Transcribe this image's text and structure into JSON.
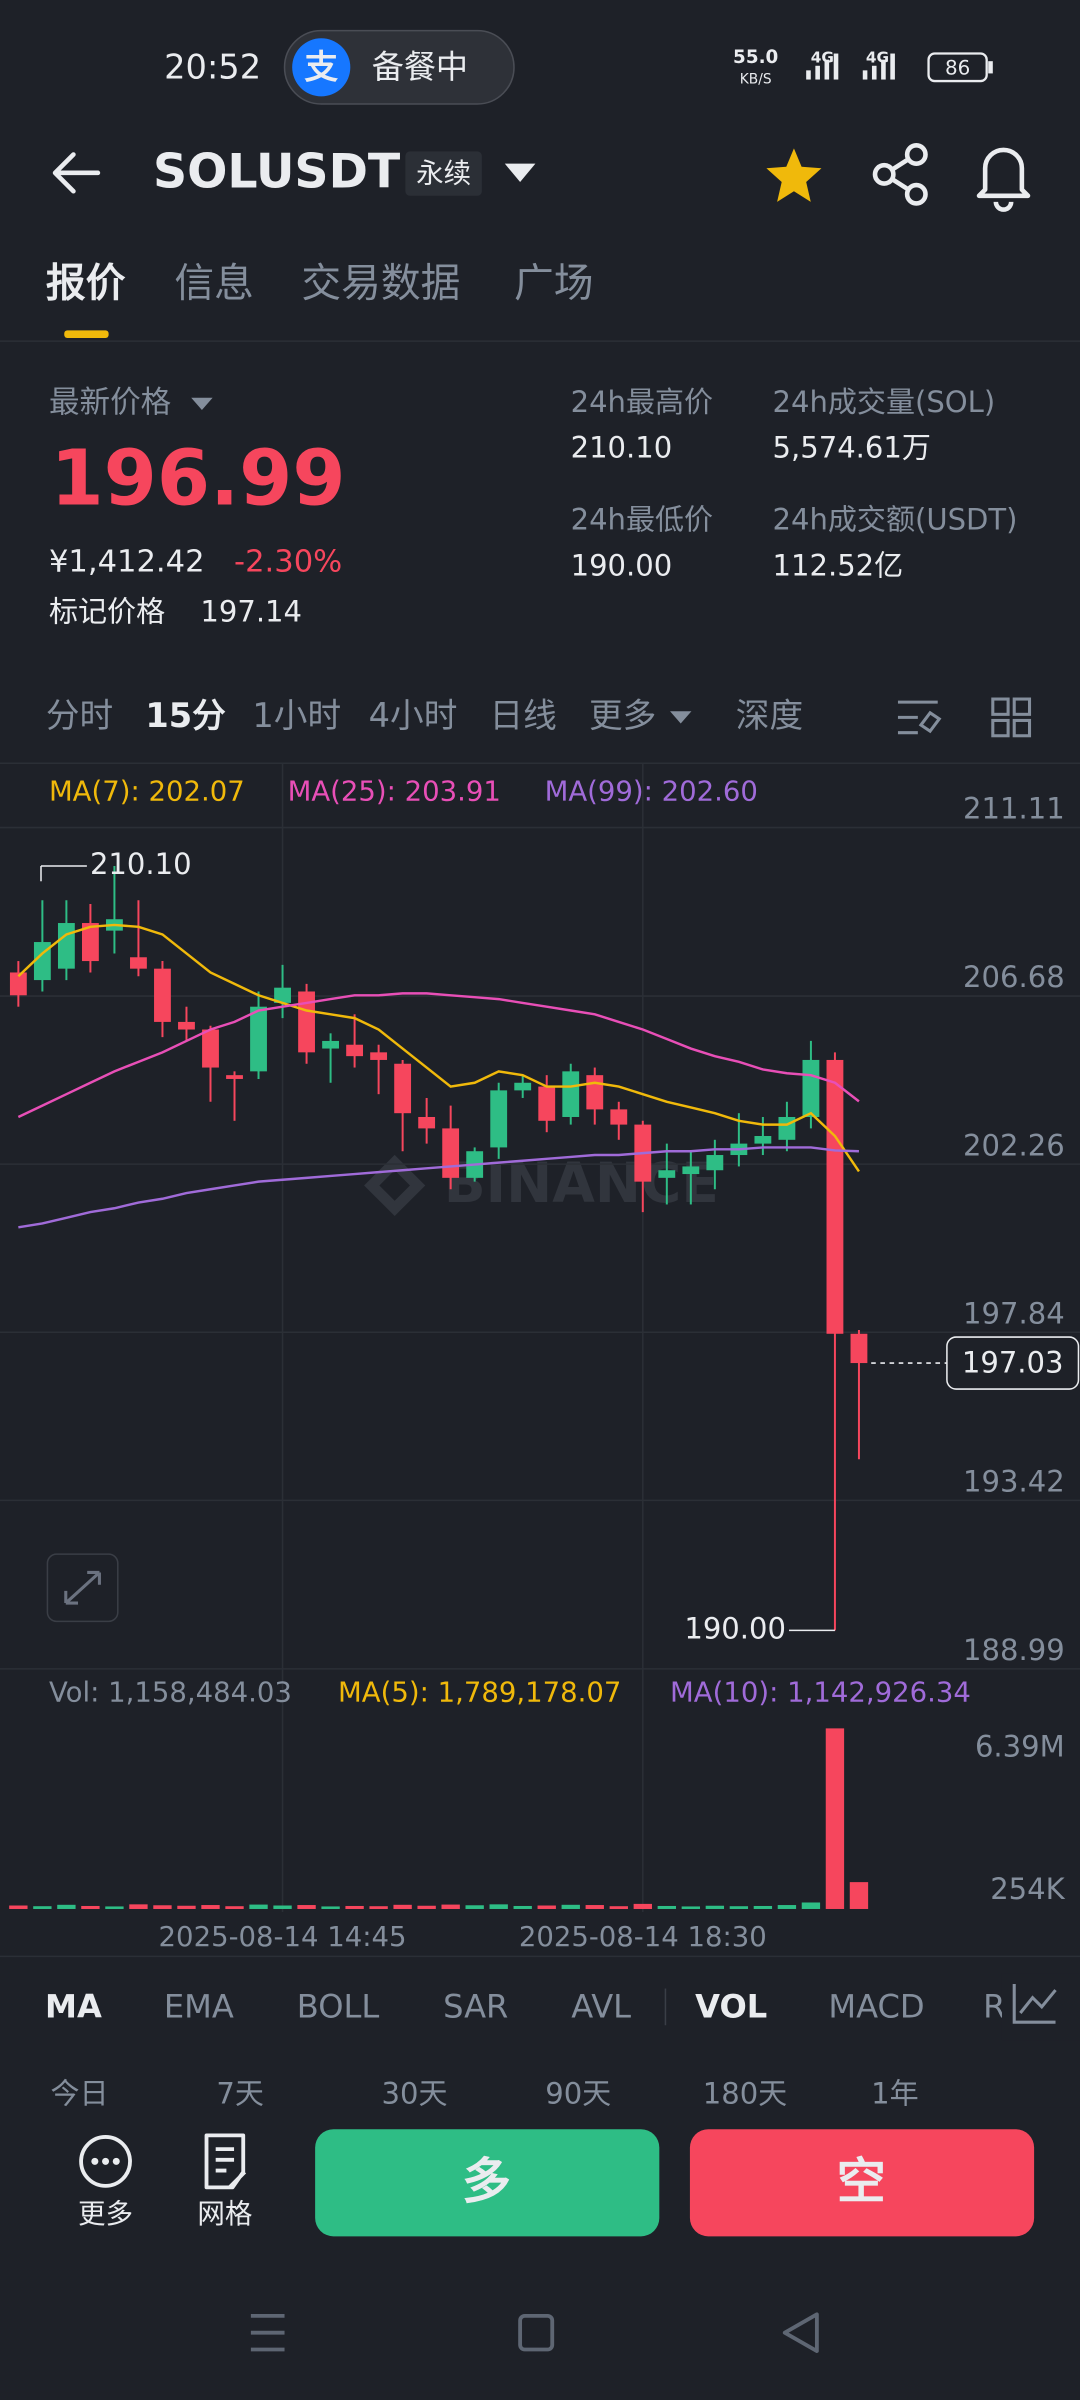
{
  "status_bar": {
    "time": "20:52",
    "app_icon": "支",
    "pill": "备餐中",
    "net_speed": "55.0",
    "net_unit": "KB/S",
    "net1": "4G",
    "net2": "4G",
    "battery": "86"
  },
  "header": {
    "symbol": "SOLUSDT",
    "tag": "永续"
  },
  "tabs": [
    "报价",
    "信息",
    "交易数据",
    "广场"
  ],
  "ticker": {
    "last_label": "最新价格",
    "last_price": "196.99",
    "cny": "¥1,412.42",
    "change": "-2.30%",
    "mark_label": "标记价格",
    "mark_price": "197.14",
    "stats": [
      {
        "label": "24h最高价",
        "value": "210.10"
      },
      {
        "label": "24h成交量(SOL)",
        "value": "5,574.61万"
      },
      {
        "label": "24h最低价",
        "value": "190.00"
      },
      {
        "label": "24h成交额(USDT)",
        "value": "112.52亿"
      }
    ]
  },
  "intervals": [
    "分时",
    "15分",
    "1小时",
    "4小时",
    "日线",
    "更多",
    "深度"
  ],
  "watermark": "BINANCE",
  "chart_data": [
    {
      "type": "candlestick",
      "up_color": "#2ebd85",
      "down_color": "#f6465d",
      "categories": [
        null,
        null,
        null,
        null,
        null,
        null,
        null,
        null,
        null,
        null,
        null,
        "2025-08-14 14:45",
        null,
        null,
        null,
        null,
        null,
        null,
        null,
        null,
        null,
        null,
        null,
        null,
        null,
        null,
        "2025-08-14 18:30",
        null,
        null,
        null,
        null,
        null,
        null,
        null,
        null,
        null
      ],
      "open": [
        207.3,
        207.1,
        207.4,
        208.6,
        208.4,
        207.7,
        207.4,
        206.0,
        205.8,
        204.6,
        204.7,
        206.5,
        206.8,
        205.3,
        205.4,
        205.2,
        204.9,
        203.5,
        203.2,
        201.9,
        202.7,
        204.2,
        204.3,
        203.5,
        204.6,
        203.7,
        203.3,
        201.9,
        202.0,
        202.1,
        202.5,
        202.8,
        202.9,
        203.5,
        205.0,
        197.8
      ],
      "high": [
        207.6,
        209.2,
        209.2,
        209.1,
        210.1,
        209.2,
        207.6,
        206.4,
        205.9,
        204.7,
        206.8,
        207.5,
        207.0,
        205.7,
        206.2,
        205.4,
        205.0,
        204.0,
        203.8,
        202.7,
        204.4,
        204.6,
        204.6,
        204.9,
        204.8,
        203.9,
        203.4,
        202.8,
        202.6,
        202.9,
        203.6,
        203.5,
        203.9,
        205.5,
        205.2,
        197.9
      ],
      "low": [
        206.4,
        206.8,
        207.1,
        207.3,
        207.8,
        207.2,
        205.6,
        205.5,
        203.9,
        203.4,
        204.5,
        206.1,
        204.9,
        204.4,
        204.8,
        204.1,
        202.6,
        202.8,
        201.6,
        201.8,
        202.4,
        204.0,
        203.1,
        203.3,
        203.3,
        202.9,
        201.0,
        201.2,
        201.2,
        201.6,
        202.2,
        202.5,
        202.6,
        203.2,
        190.0,
        194.5
      ],
      "close": [
        206.7,
        208.1,
        208.6,
        207.6,
        208.7,
        207.4,
        206.0,
        205.8,
        204.8,
        204.5,
        206.4,
        206.9,
        205.2,
        205.5,
        205.1,
        205.0,
        203.6,
        203.2,
        201.9,
        202.6,
        204.2,
        204.4,
        203.4,
        204.7,
        203.7,
        203.3,
        201.8,
        202.1,
        202.2,
        202.5,
        202.8,
        203.0,
        203.5,
        205.0,
        197.8,
        197.03
      ],
      "series": [
        {
          "name": "MA(7): 202.07",
          "color": "#f0b90b",
          "values": [
            207.2,
            207.8,
            208.3,
            208.5,
            208.55,
            208.5,
            208.3,
            207.8,
            207.3,
            207.0,
            206.7,
            206.5,
            206.3,
            206.2,
            206.1,
            205.8,
            205.3,
            204.8,
            204.3,
            204.4,
            204.7,
            204.6,
            204.3,
            204.3,
            204.4,
            204.3,
            204.1,
            203.9,
            203.75,
            203.6,
            203.4,
            203.3,
            203.3,
            203.6,
            203.0,
            202.07
          ]
        },
        {
          "name": "MA(25): 203.91",
          "color": "#e84fb7",
          "values": [
            203.5,
            203.8,
            204.1,
            204.4,
            204.7,
            204.95,
            205.2,
            205.5,
            205.8,
            206.0,
            206.3,
            206.4,
            206.5,
            206.6,
            206.7,
            206.7,
            206.75,
            206.75,
            206.7,
            206.65,
            206.6,
            206.5,
            206.4,
            206.3,
            206.2,
            206.0,
            205.8,
            205.55,
            205.3,
            205.1,
            204.95,
            204.75,
            204.65,
            204.6,
            204.4,
            203.91
          ]
        },
        {
          "name": "MA(99): 202.60",
          "color": "#a06bd9",
          "values": [
            200.6,
            200.7,
            200.85,
            201.0,
            201.1,
            201.25,
            201.35,
            201.5,
            201.6,
            201.7,
            201.8,
            201.85,
            201.9,
            201.95,
            202.0,
            202.05,
            202.1,
            202.15,
            202.2,
            202.25,
            202.3,
            202.35,
            202.4,
            202.45,
            202.5,
            202.5,
            202.55,
            202.6,
            202.6,
            202.65,
            202.65,
            202.7,
            202.7,
            202.7,
            202.62,
            202.6
          ]
        }
      ],
      "ylim": [
        188.99,
        212.76
      ],
      "yticks": [
        211.11,
        206.68,
        202.26,
        197.84,
        193.42,
        188.99
      ],
      "annotations": {
        "high": "210.10",
        "low": "190.00",
        "last": "197.03"
      }
    },
    {
      "type": "bar",
      "title": "Vol: 1,158,484.03",
      "legend": [
        {
          "name": "MA(5): 1,789,178.07",
          "color": "#f0b90b"
        },
        {
          "name": "MA(10): 1,142,926.34",
          "color": "#a06bd9"
        }
      ],
      "values": [
        150000,
        120000,
        180000,
        130000,
        110000,
        200000,
        160000,
        140000,
        170000,
        120000,
        190000,
        150000,
        170000,
        110000,
        130000,
        120000,
        180000,
        140000,
        190000,
        160000,
        200000,
        130000,
        150000,
        180000,
        170000,
        120000,
        220000,
        130000,
        110000,
        140000,
        120000,
        130000,
        170000,
        280000,
        7790000,
        1158484.03
      ],
      "ylim": [
        0,
        8115000
      ],
      "yticks": [
        {
          "value": 254000,
          "label": "254K"
        },
        {
          "value": 6390000,
          "label": "6.39M"
        }
      ]
    }
  ],
  "indicators": [
    "MA",
    "EMA",
    "BOLL",
    "SAR",
    "AVL",
    "VOL",
    "MACD",
    "R"
  ],
  "periods": [
    "今日",
    "7天",
    "30天",
    "90天",
    "180天",
    "1年"
  ],
  "actions": {
    "more": "更多",
    "grid": "网格",
    "long": "多",
    "short": "空"
  }
}
